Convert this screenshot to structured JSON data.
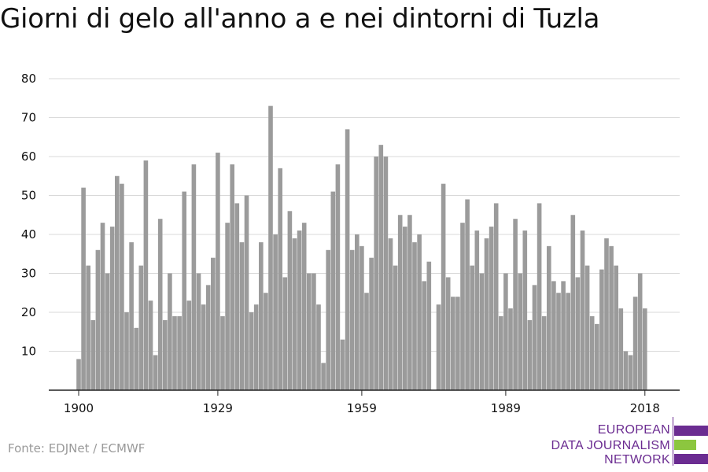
{
  "source": "Fonte: EDJNet / ECMWF",
  "logo": {
    "lines": [
      "EUROPEAN",
      "DATA JOURNALISM",
      "NETWORK"
    ],
    "colors": {
      "purple": "#6b2c91",
      "green": "#8cc63f"
    }
  },
  "chart_data": {
    "type": "bar",
    "title": "Giorni di gelo all'anno a e nei dintorni di Tuzla",
    "xlabel": "",
    "ylabel": "",
    "bar_color": "#9b9b9b",
    "ylim": [
      0,
      80
    ],
    "yticks": [
      10,
      20,
      30,
      40,
      50,
      60,
      70,
      80
    ],
    "xticks": [
      1900,
      1929,
      1959,
      1989,
      2018
    ],
    "grid": true,
    "years": [
      1900,
      1901,
      1902,
      1903,
      1904,
      1905,
      1906,
      1907,
      1908,
      1909,
      1910,
      1911,
      1912,
      1913,
      1914,
      1915,
      1916,
      1917,
      1918,
      1919,
      1920,
      1921,
      1922,
      1923,
      1924,
      1925,
      1926,
      1927,
      1928,
      1929,
      1930,
      1931,
      1932,
      1933,
      1934,
      1935,
      1936,
      1937,
      1938,
      1939,
      1940,
      1941,
      1942,
      1943,
      1944,
      1945,
      1946,
      1947,
      1948,
      1949,
      1950,
      1951,
      1952,
      1953,
      1954,
      1955,
      1956,
      1957,
      1958,
      1959,
      1960,
      1961,
      1962,
      1963,
      1964,
      1965,
      1966,
      1967,
      1968,
      1969,
      1970,
      1971,
      1972,
      1973,
      1974,
      1975,
      1976,
      1977,
      1978,
      1979,
      1980,
      1981,
      1982,
      1983,
      1984,
      1985,
      1986,
      1987,
      1988,
      1989,
      1990,
      1991,
      1992,
      1993,
      1994,
      1995,
      1996,
      1997,
      1998,
      1999,
      2000,
      2001,
      2002,
      2003,
      2004,
      2005,
      2006,
      2007,
      2008,
      2009,
      2010,
      2011,
      2012,
      2013,
      2014,
      2015,
      2016,
      2017,
      2018
    ],
    "values": [
      8,
      52,
      32,
      18,
      36,
      43,
      30,
      42,
      55,
      53,
      20,
      38,
      16,
      32,
      59,
      23,
      9,
      44,
      18,
      30,
      19,
      19,
      51,
      23,
      58,
      30,
      22,
      27,
      34,
      61,
      19,
      43,
      58,
      48,
      38,
      50,
      20,
      22,
      38,
      25,
      73,
      40,
      57,
      29,
      46,
      39,
      41,
      43,
      30,
      30,
      22,
      7,
      36,
      51,
      58,
      13,
      67,
      36,
      40,
      37,
      25,
      34,
      60,
      63,
      60,
      39,
      32,
      45,
      42,
      45,
      38,
      40,
      28,
      33,
      0,
      22,
      53,
      29,
      24,
      24,
      43,
      49,
      32,
      41,
      30,
      39,
      42,
      48,
      19,
      30,
      21,
      44,
      30,
      41,
      18,
      27,
      48,
      19,
      37,
      28,
      25,
      28,
      25,
      45,
      29,
      41,
      32,
      19,
      17,
      31,
      39,
      37,
      32,
      21,
      10,
      9,
      24,
      30,
      21
    ]
  }
}
